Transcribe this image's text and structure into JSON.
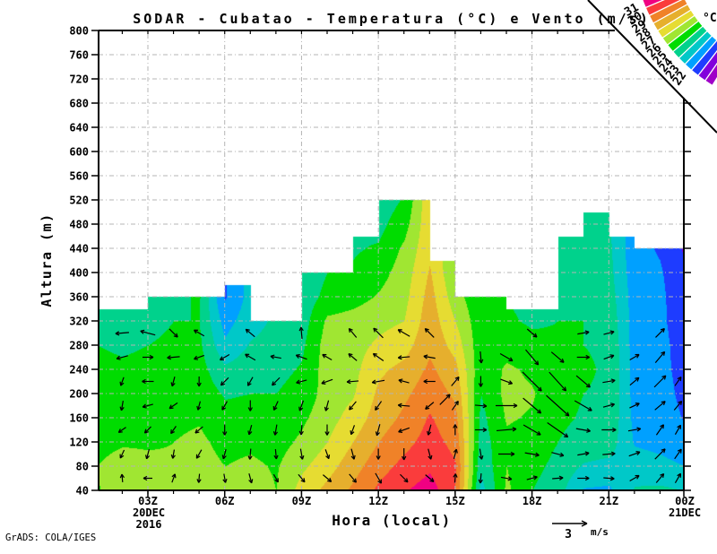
{
  "title": "SODAR - Cubatao - Temperatura (°C) e Vento (m/s)",
  "credit": "GrADS: COLA/IGES",
  "axes": {
    "x_label": "Hora (local)",
    "y_label": "Altura (m)",
    "x_ticks": [
      "03Z",
      "06Z",
      "09Z",
      "12Z",
      "15Z",
      "18Z",
      "21Z",
      "00Z"
    ],
    "x_date_start": [
      "20DEC",
      "2016"
    ],
    "x_date_end": "21DEC",
    "y_tick_min": 40,
    "y_tick_max": 800,
    "y_tick_step": 40,
    "grid_color": "#b4b4b4"
  },
  "legend": {
    "unit": "°C",
    "labels": [
      "31",
      "30",
      "29",
      "28",
      "27",
      "26",
      "25",
      "24",
      "23",
      "22"
    ],
    "colors_high_to_low": [
      "#F00082",
      "#FA3C3C",
      "#F08228",
      "#E6AF2D",
      "#E6DC32",
      "#A0E632",
      "#00DC00",
      "#00D28C",
      "#00C8C8",
      "#00A0FF",
      "#1E3CFF",
      "#8200DC",
      "#A000C8"
    ]
  },
  "wind_ref": {
    "value": "3",
    "unit": "m/s"
  },
  "chart_data": {
    "type": "heatmap",
    "title": "SODAR - Cubatao - Temperatura (C) e Vento (m/s)",
    "xlabel": "Hora (local)",
    "ylabel": "Altura (m)",
    "x_hours": [
      1,
      2,
      3,
      4,
      5,
      6,
      7,
      8,
      9,
      10,
      11,
      12,
      13,
      14,
      15,
      16,
      17,
      18,
      19,
      20,
      21,
      22,
      23,
      24
    ],
    "heights_m": [
      40,
      80,
      120,
      160,
      200,
      240,
      280,
      320,
      360,
      400,
      440,
      480,
      520
    ],
    "column_tops_m": [
      340,
      340,
      360,
      360,
      360,
      380,
      320,
      320,
      400,
      400,
      460,
      520,
      520,
      420,
      360,
      360,
      340,
      340,
      460,
      500,
      460,
      440,
      440
    ],
    "temperature_c": [
      [
        25.9,
        26.0,
        25.7,
        25.4,
        25.3,
        25.2,
        25.0,
        24.5,
        24.4,
        24.4,
        24.4,
        24.4,
        24.4
      ],
      [
        26.7,
        26.4,
        25.9,
        25.5,
        25.3,
        25.1,
        24.9,
        24.5,
        24.4,
        24.4,
        24.4,
        24.4,
        24.4
      ],
      [
        26.3,
        26.2,
        25.9,
        25.6,
        25.4,
        25.2,
        25.0,
        24.7,
        24.5,
        24.5,
        24.5,
        24.5,
        24.5
      ],
      [
        26.0,
        26.1,
        26.0,
        25.8,
        25.5,
        25.3,
        25.2,
        25.0,
        24.8,
        24.8,
        24.8,
        24.8,
        24.8
      ],
      [
        26.6,
        26.4,
        26.2,
        25.9,
        25.6,
        25.4,
        25.2,
        25.0,
        25.1,
        25.1,
        25.1,
        25.1,
        25.1
      ],
      [
        26.2,
        26.0,
        25.7,
        25.3,
        24.9,
        24.2,
        23.2,
        22.6,
        21.9,
        21.9,
        21.9,
        21.9,
        21.9
      ],
      [
        26.5,
        26.2,
        25.8,
        25.4,
        25.0,
        24.6,
        24.1,
        23.6,
        23.4,
        23.4,
        23.4,
        23.4,
        23.4
      ],
      [
        26.0,
        25.9,
        25.6,
        25.3,
        25.0,
        24.7,
        24.4,
        24.2,
        24.2,
        24.2,
        24.2,
        24.2,
        24.2
      ],
      [
        27.4,
        26.8,
        26.2,
        25.8,
        25.4,
        25.1,
        24.8,
        24.5,
        24.4,
        24.3,
        24.3,
        24.3,
        24.3
      ],
      [
        28.3,
        27.6,
        27.0,
        26.6,
        26.4,
        26.5,
        26.5,
        26.2,
        25.3,
        25.0,
        25.0,
        25.0,
        25.0
      ],
      [
        29.2,
        28.6,
        28.0,
        27.4,
        26.9,
        26.7,
        26.6,
        26.4,
        25.6,
        25.1,
        24.9,
        24.9,
        24.9
      ],
      [
        30.2,
        29.6,
        29.0,
        28.5,
        28.2,
        27.8,
        27.2,
        26.7,
        26.1,
        25.6,
        25.1,
        24.7,
        24.4
      ],
      [
        30.9,
        30.3,
        29.7,
        29.2,
        28.8,
        28.3,
        27.6,
        27.0,
        26.7,
        26.5,
        26.2,
        25.6,
        25.1
      ],
      [
        31.5,
        30.8,
        30.4,
        30.1,
        29.6,
        29.2,
        28.8,
        28.6,
        28.4,
        28.1,
        27.8,
        27.8,
        27.8
      ],
      [
        30.0,
        30.1,
        29.7,
        29.3,
        28.8,
        28.3,
        27.6,
        27.0,
        26.4,
        26.0,
        26.0,
        26.0,
        26.0
      ],
      [
        23.6,
        24.2,
        24.5,
        24.7,
        25.0,
        25.2,
        25.3,
        25.3,
        25.2,
        25.2,
        25.2,
        25.2,
        25.2
      ],
      [
        26.2,
        26.0,
        25.8,
        26.1,
        26.3,
        26.2,
        25.5,
        25.1,
        25.0,
        25.0,
        25.0,
        25.0,
        25.0
      ],
      [
        25.0,
        25.3,
        25.6,
        25.9,
        26.1,
        25.8,
        25.2,
        24.9,
        24.8,
        24.8,
        24.8,
        24.8,
        24.8
      ],
      [
        24.4,
        24.7,
        25.0,
        25.2,
        25.3,
        25.2,
        25.1,
        25.0,
        25.0,
        24.9,
        25.0,
        24.9,
        24.9
      ],
      [
        22.9,
        23.9,
        24.6,
        24.9,
        25.0,
        25.1,
        25.0,
        25.0,
        24.9,
        24.7,
        24.6,
        24.4,
        24.4
      ],
      [
        22.8,
        23.7,
        24.5,
        24.8,
        24.9,
        24.9,
        24.9,
        24.7,
        24.5,
        24.3,
        24.2,
        24.1,
        24.1
      ],
      [
        24.1,
        23.5,
        22.9,
        22.7,
        22.6,
        22.6,
        22.5,
        22.5,
        22.5,
        22.4,
        22.3,
        22.3,
        22.3
      ],
      [
        24.2,
        23.3,
        22.7,
        22.5,
        22.4,
        22.3,
        22.3,
        22.2,
        22.2,
        22.1,
        21.9,
        21.9,
        21.9
      ],
      [
        24.0,
        23.0,
        22.3,
        21.9,
        21.7,
        21.6,
        21.5,
        21.4,
        21.3,
        21.2,
        20.8,
        20.8,
        20.8
      ]
    ],
    "temp_band_colors": {
      "19": "#A000C8",
      "20": "#8200DC",
      "21": "#1E3CFF",
      "22": "#00A0FF",
      "23": "#00C8C8",
      "24": "#00D28C",
      "25": "#00DC00",
      "26": "#A0E632",
      "27": "#E6DC32",
      "28": "#E6AF2D",
      "29": "#F08228",
      "30": "#FA3C3C",
      "31": "#F00082"
    },
    "wind_vectors_t_h_dir_len": [
      [
        2,
        60,
        95,
        9
      ],
      [
        2,
        100,
        245,
        10
      ],
      [
        2,
        140,
        215,
        10
      ],
      [
        2,
        180,
        260,
        11
      ],
      [
        2,
        220,
        250,
        10
      ],
      [
        2,
        260,
        195,
        13
      ],
      [
        2,
        300,
        185,
        15
      ],
      [
        3,
        60,
        180,
        10
      ],
      [
        3,
        100,
        255,
        11
      ],
      [
        3,
        140,
        225,
        10
      ],
      [
        3,
        180,
        195,
        12
      ],
      [
        3,
        220,
        180,
        13
      ],
      [
        3,
        260,
        0,
        12
      ],
      [
        3,
        300,
        165,
        17
      ],
      [
        4,
        60,
        70,
        10
      ],
      [
        4,
        100,
        260,
        10
      ],
      [
        4,
        140,
        235,
        10
      ],
      [
        4,
        180,
        215,
        11
      ],
      [
        4,
        220,
        255,
        11
      ],
      [
        4,
        260,
        185,
        14
      ],
      [
        4,
        300,
        315,
        13
      ],
      [
        5,
        60,
        265,
        10
      ],
      [
        5,
        100,
        240,
        11
      ],
      [
        5,
        140,
        220,
        11
      ],
      [
        5,
        180,
        255,
        10
      ],
      [
        5,
        220,
        270,
        11
      ],
      [
        5,
        260,
        200,
        12
      ],
      [
        5,
        300,
        150,
        13
      ],
      [
        6,
        60,
        280,
        10
      ],
      [
        6,
        100,
        255,
        11
      ],
      [
        6,
        140,
        270,
        12
      ],
      [
        6,
        180,
        240,
        11
      ],
      [
        6,
        220,
        225,
        12
      ],
      [
        6,
        260,
        210,
        12
      ],
      [
        7,
        60,
        285,
        11
      ],
      [
        7,
        100,
        265,
        12
      ],
      [
        7,
        140,
        255,
        11
      ],
      [
        7,
        180,
        270,
        12
      ],
      [
        7,
        220,
        240,
        11
      ],
      [
        7,
        260,
        150,
        13
      ],
      [
        7,
        300,
        140,
        13
      ],
      [
        8,
        60,
        300,
        10
      ],
      [
        8,
        100,
        275,
        11
      ],
      [
        8,
        140,
        260,
        12
      ],
      [
        8,
        180,
        245,
        11
      ],
      [
        8,
        220,
        225,
        12
      ],
      [
        8,
        260,
        170,
        12
      ],
      [
        9,
        60,
        310,
        11
      ],
      [
        9,
        100,
        280,
        12
      ],
      [
        9,
        140,
        265,
        11
      ],
      [
        9,
        180,
        250,
        12
      ],
      [
        9,
        220,
        195,
        12
      ],
      [
        9,
        260,
        160,
        13
      ],
      [
        9,
        300,
        95,
        13
      ],
      [
        10,
        60,
        320,
        12
      ],
      [
        10,
        100,
        290,
        11
      ],
      [
        10,
        140,
        270,
        12
      ],
      [
        10,
        180,
        255,
        12
      ],
      [
        10,
        220,
        200,
        13
      ],
      [
        10,
        260,
        150,
        12
      ],
      [
        11,
        60,
        310,
        12
      ],
      [
        11,
        100,
        285,
        12
      ],
      [
        11,
        140,
        250,
        11
      ],
      [
        11,
        180,
        230,
        12
      ],
      [
        11,
        220,
        185,
        13
      ],
      [
        11,
        260,
        140,
        12
      ],
      [
        11,
        300,
        130,
        13
      ],
      [
        12,
        60,
        300,
        13
      ],
      [
        12,
        100,
        270,
        12
      ],
      [
        12,
        140,
        255,
        13
      ],
      [
        12,
        180,
        235,
        12
      ],
      [
        12,
        220,
        190,
        14
      ],
      [
        12,
        260,
        145,
        14
      ],
      [
        12,
        300,
        135,
        15
      ],
      [
        13,
        60,
        315,
        12
      ],
      [
        13,
        100,
        270,
        13
      ],
      [
        13,
        140,
        200,
        13
      ],
      [
        13,
        180,
        175,
        13
      ],
      [
        13,
        220,
        165,
        12
      ],
      [
        13,
        260,
        185,
        13
      ],
      [
        13,
        300,
        150,
        15
      ],
      [
        14,
        60,
        320,
        12
      ],
      [
        14,
        100,
        285,
        12
      ],
      [
        14,
        140,
        255,
        12
      ],
      [
        14,
        180,
        220,
        12
      ],
      [
        14,
        220,
        180,
        13
      ],
      [
        14,
        260,
        170,
        13
      ],
      [
        14,
        300,
        135,
        14
      ],
      [
        14.6,
        190,
        45,
        16
      ],
      [
        15,
        60,
        85,
        10
      ],
      [
        15,
        100,
        75,
        11
      ],
      [
        15,
        140,
        90,
        12
      ],
      [
        15,
        180,
        55,
        12
      ],
      [
        15,
        220,
        50,
        13
      ],
      [
        16,
        60,
        265,
        11
      ],
      [
        16,
        100,
        280,
        12
      ],
      [
        16,
        140,
        0,
        13
      ],
      [
        16,
        180,
        355,
        13
      ],
      [
        16,
        220,
        270,
        12
      ],
      [
        16,
        260,
        275,
        13
      ],
      [
        17,
        60,
        350,
        12
      ],
      [
        17,
        100,
        0,
        18
      ],
      [
        17,
        140,
        5,
        22
      ],
      [
        17,
        180,
        0,
        24
      ],
      [
        17,
        220,
        340,
        14
      ],
      [
        17,
        260,
        330,
        16
      ],
      [
        18,
        60,
        15,
        12
      ],
      [
        18,
        100,
        350,
        16
      ],
      [
        18,
        140,
        330,
        22
      ],
      [
        18,
        180,
        320,
        26
      ],
      [
        18,
        220,
        315,
        30
      ],
      [
        18,
        260,
        310,
        22
      ],
      [
        18,
        300,
        320,
        14
      ],
      [
        19,
        60,
        5,
        12
      ],
      [
        19,
        100,
        345,
        14
      ],
      [
        19,
        140,
        325,
        28
      ],
      [
        19,
        180,
        318,
        34
      ],
      [
        19,
        220,
        312,
        28
      ],
      [
        19,
        260,
        320,
        18
      ],
      [
        20,
        60,
        0,
        13
      ],
      [
        20,
        100,
        10,
        13
      ],
      [
        20,
        140,
        350,
        16
      ],
      [
        20,
        180,
        330,
        22
      ],
      [
        20,
        220,
        320,
        20
      ],
      [
        20,
        260,
        0,
        14
      ],
      [
        20,
        300,
        10,
        13
      ],
      [
        21,
        60,
        355,
        12
      ],
      [
        21,
        100,
        5,
        14
      ],
      [
        21,
        140,
        0,
        16
      ],
      [
        21,
        180,
        15,
        13
      ],
      [
        21,
        220,
        10,
        14
      ],
      [
        21,
        260,
        20,
        12
      ],
      [
        21,
        300,
        15,
        12
      ],
      [
        22,
        60,
        30,
        12
      ],
      [
        22,
        100,
        20,
        13
      ],
      [
        22,
        140,
        10,
        14
      ],
      [
        22,
        180,
        25,
        12
      ],
      [
        22,
        220,
        40,
        13
      ],
      [
        22,
        260,
        30,
        12
      ],
      [
        23,
        60,
        50,
        13
      ],
      [
        23,
        100,
        45,
        16
      ],
      [
        23,
        140,
        55,
        14
      ],
      [
        23,
        180,
        40,
        15
      ],
      [
        23,
        220,
        45,
        18
      ],
      [
        23,
        260,
        50,
        16
      ],
      [
        23,
        300,
        45,
        14
      ],
      [
        23.7,
        60,
        60,
        12
      ],
      [
        23.7,
        100,
        55,
        13
      ],
      [
        23.7,
        140,
        60,
        12
      ],
      [
        23.7,
        180,
        50,
        13
      ],
      [
        23.7,
        220,
        55,
        12
      ]
    ]
  }
}
